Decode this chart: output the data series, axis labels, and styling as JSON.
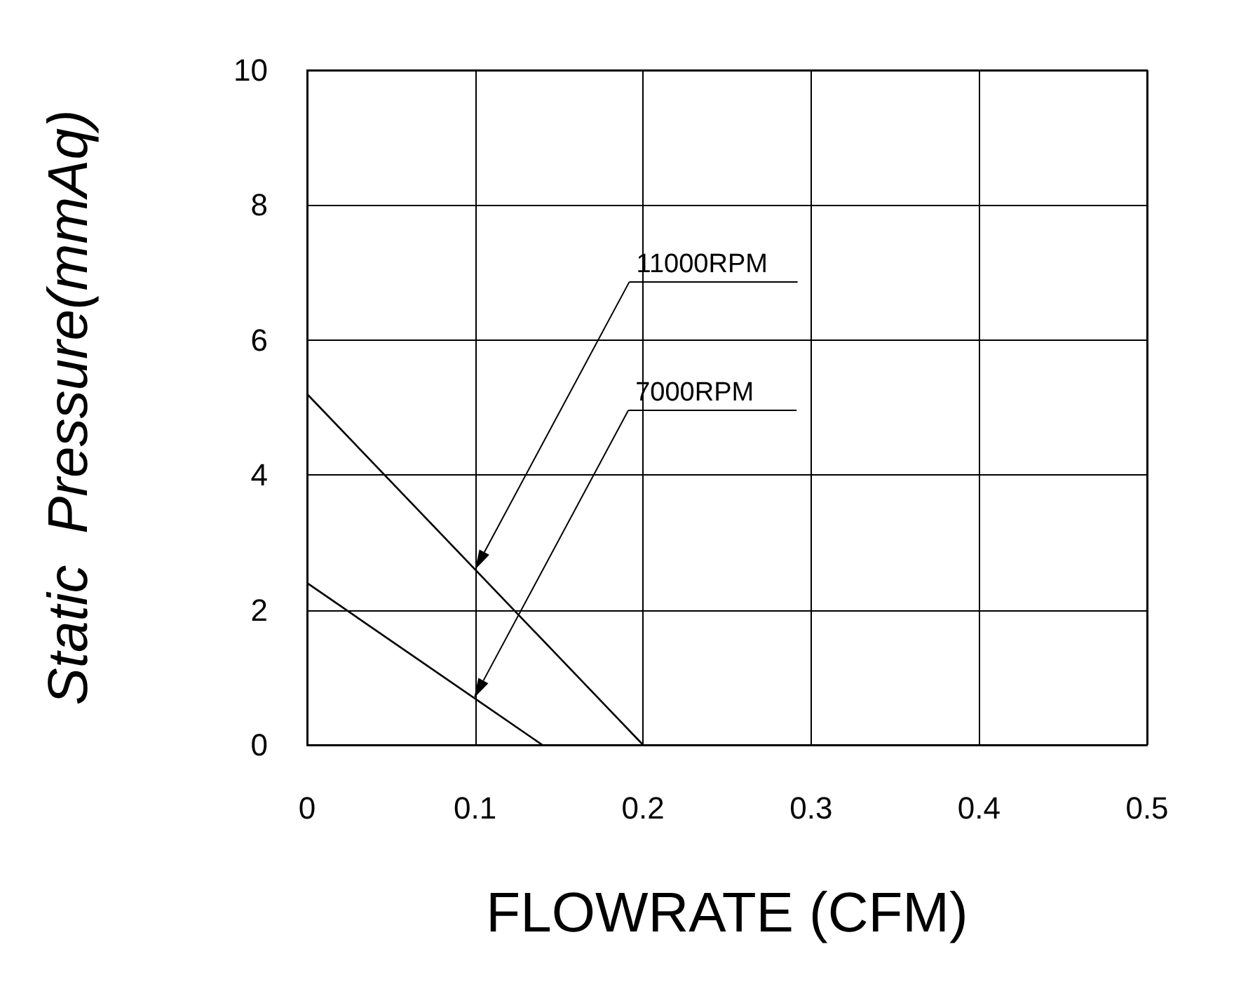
{
  "chart_data": {
    "type": "line",
    "xlabel": "FLOWRATE (CFM)",
    "ylabel": "Static  Pressure(mmAq)",
    "series": [
      {
        "name": "11000RPM",
        "color": "#000000",
        "x": [
          0,
          0.2
        ],
        "values": [
          5.2,
          0
        ]
      },
      {
        "name": "7000RPM",
        "color": "#000000",
        "x": [
          0,
          0.14
        ],
        "values": [
          2.4,
          0
        ]
      }
    ],
    "legend": false,
    "xlim": [
      0,
      0.5
    ],
    "xticks": [
      0,
      0.1,
      0.2,
      0.3,
      0.4,
      0.5
    ],
    "ylim": [
      0,
      10
    ],
    "yticks": [
      0,
      2,
      4,
      6,
      8,
      10
    ],
    "grid": true,
    "marker": "none",
    "line_style": "solid"
  }
}
